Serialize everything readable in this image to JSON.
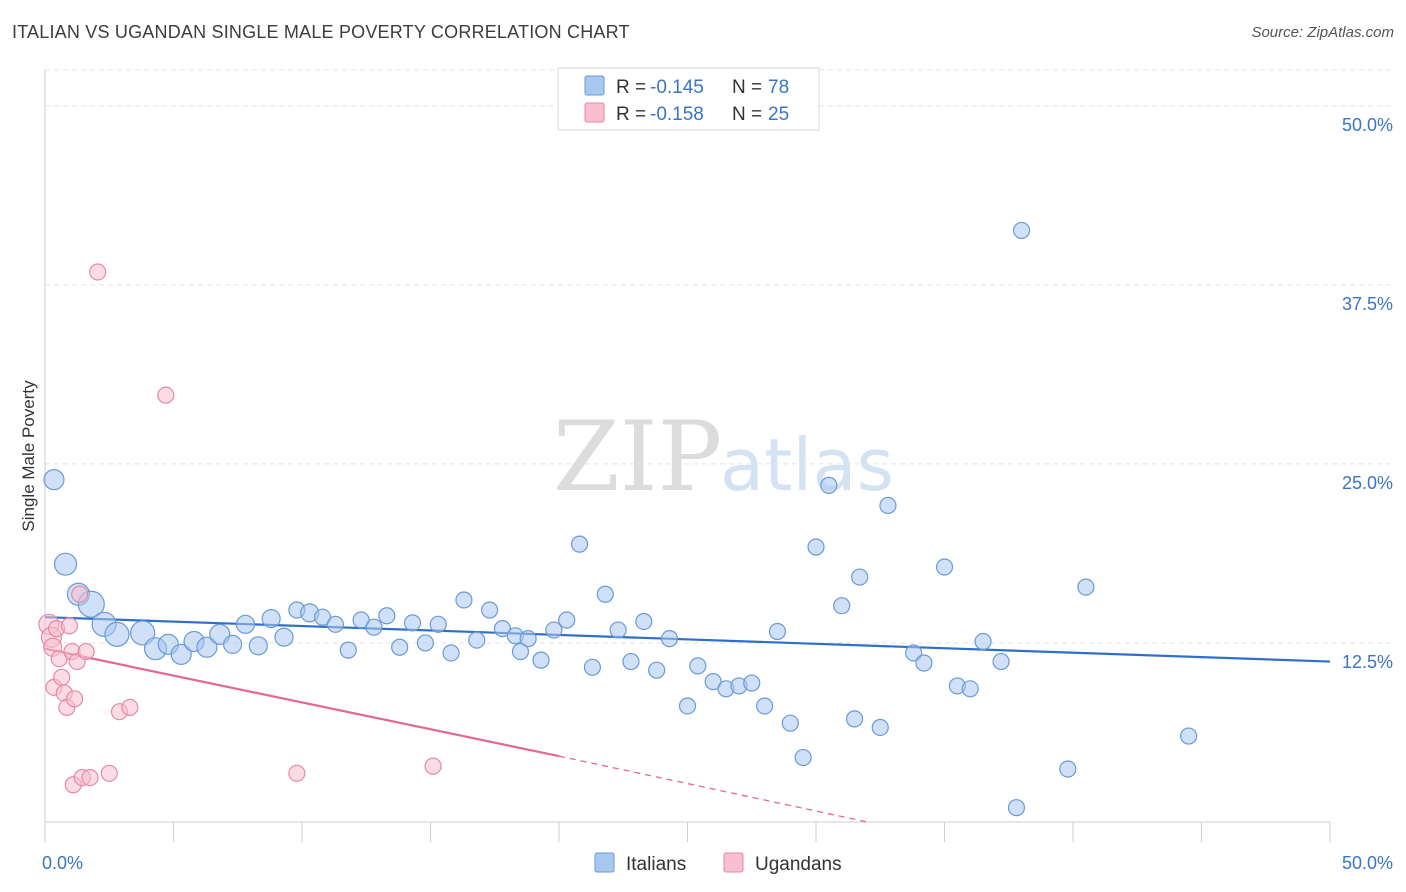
{
  "title": "ITALIAN VS UGANDAN SINGLE MALE POVERTY CORRELATION CHART",
  "source": "Source: ZipAtlas.com",
  "watermark": {
    "zip": "ZIP",
    "atlas": "atlas"
  },
  "colors": {
    "italians_fill": "#a9c8f0",
    "italians_stroke": "#6a9ad6",
    "italians_line": "#2f6fc9",
    "ugandans_fill": "#f7bfd0",
    "ugandans_stroke": "#e58aa6",
    "ugandans_line": "#e4688f",
    "axis_text": "#3a74c4",
    "grid": "#e3e3e3"
  },
  "legend": {
    "rows": [
      {
        "r_label": "R =",
        "r_value": "-0.145",
        "n_label": "N =",
        "n_value": "78"
      },
      {
        "r_label": "R =",
        "r_value": "-0.158",
        "n_label": "N =",
        "n_value": "25"
      }
    ]
  },
  "bottom_legend": {
    "italians": "Italians",
    "ugandans": "Ugandans"
  },
  "chart_data": {
    "type": "scatter",
    "xlabel": "",
    "ylabel": "Single Male Poverty",
    "xlim": [
      0,
      50
    ],
    "ylim": [
      0,
      52.5
    ],
    "x_tick_labels": [
      "0.0%",
      "50.0%"
    ],
    "y_ticks": [
      12.5,
      25.0,
      37.5,
      50.0
    ],
    "y_tick_labels": [
      "12.5%",
      "25.0%",
      "37.5%",
      "50.0%"
    ],
    "grid": "horizontal dashed",
    "series": [
      {
        "name": "Italians",
        "points": [
          [
            0.35,
            23.9,
            10
          ],
          [
            0.8,
            18.0,
            11
          ],
          [
            1.3,
            15.9,
            11
          ],
          [
            1.8,
            15.2,
            13
          ],
          [
            2.3,
            13.8,
            12
          ],
          [
            2.8,
            13.1,
            12
          ],
          [
            3.8,
            13.2,
            12
          ],
          [
            4.3,
            12.1,
            11
          ],
          [
            4.8,
            12.4,
            10
          ],
          [
            5.3,
            11.7,
            10
          ],
          [
            5.8,
            12.6,
            10
          ],
          [
            6.3,
            12.2,
            10
          ],
          [
            6.8,
            13.1,
            10
          ],
          [
            7.3,
            12.4,
            9
          ],
          [
            7.8,
            13.8,
            9
          ],
          [
            8.3,
            12.3,
            9
          ],
          [
            8.8,
            14.2,
            9
          ],
          [
            9.3,
            12.9,
            9
          ],
          [
            9.8,
            14.8,
            8
          ],
          [
            10.3,
            14.6,
            9
          ],
          [
            10.8,
            14.3,
            8
          ],
          [
            11.3,
            13.8,
            8
          ],
          [
            11.8,
            12.0,
            8
          ],
          [
            12.3,
            14.1,
            8
          ],
          [
            12.8,
            13.6,
            8
          ],
          [
            13.3,
            14.4,
            8
          ],
          [
            13.8,
            12.2,
            8
          ],
          [
            14.3,
            13.9,
            8
          ],
          [
            14.8,
            12.5,
            8
          ],
          [
            15.3,
            13.8,
            8
          ],
          [
            15.8,
            11.8,
            8
          ],
          [
            16.3,
            15.5,
            8
          ],
          [
            16.8,
            12.7,
            8
          ],
          [
            17.3,
            14.8,
            8
          ],
          [
            17.8,
            13.5,
            8
          ],
          [
            18.3,
            13.0,
            8
          ],
          [
            18.8,
            12.8,
            8
          ],
          [
            19.3,
            11.3,
            8
          ],
          [
            19.8,
            13.4,
            8
          ],
          [
            20.3,
            14.1,
            8
          ],
          [
            20.8,
            19.4,
            8
          ],
          [
            21.3,
            10.8,
            8
          ],
          [
            21.8,
            15.9,
            8
          ],
          [
            22.3,
            13.4,
            8
          ],
          [
            22.8,
            11.2,
            8
          ],
          [
            23.3,
            14.0,
            8
          ],
          [
            23.8,
            10.6,
            8
          ],
          [
            24.3,
            12.8,
            8
          ],
          [
            25.0,
            8.1,
            8
          ],
          [
            25.4,
            10.9,
            8
          ],
          [
            26.0,
            9.8,
            8
          ],
          [
            26.5,
            9.3,
            8
          ],
          [
            27.0,
            9.5,
            8
          ],
          [
            27.5,
            9.7,
            8
          ],
          [
            28.0,
            8.1,
            8
          ],
          [
            28.5,
            13.3,
            8
          ],
          [
            29.0,
            6.9,
            8
          ],
          [
            29.5,
            4.5,
            8
          ],
          [
            30.0,
            19.2,
            8
          ],
          [
            30.5,
            23.5,
            8
          ],
          [
            31.0,
            15.1,
            8
          ],
          [
            31.5,
            7.2,
            8
          ],
          [
            31.7,
            17.1,
            8
          ],
          [
            32.5,
            6.6,
            8
          ],
          [
            32.8,
            22.1,
            8
          ],
          [
            33.8,
            11.8,
            8
          ],
          [
            34.2,
            11.1,
            8
          ],
          [
            35.0,
            17.8,
            8
          ],
          [
            35.5,
            9.5,
            8
          ],
          [
            36.0,
            9.3,
            8
          ],
          [
            36.5,
            12.6,
            8
          ],
          [
            37.2,
            11.2,
            8
          ],
          [
            37.8,
            1.0,
            8
          ],
          [
            38.0,
            41.3,
            8
          ],
          [
            39.8,
            3.7,
            8
          ],
          [
            40.5,
            16.4,
            8
          ],
          [
            44.5,
            6.0,
            8
          ],
          [
            18.5,
            11.9,
            8
          ]
        ],
        "trend": {
          "x": [
            0,
            50
          ],
          "y": [
            14.3,
            11.2
          ]
        }
      },
      {
        "name": "Ugandans",
        "points": [
          [
            0.15,
            13.8,
            10
          ],
          [
            0.25,
            12.9,
            10
          ],
          [
            0.3,
            12.2,
            9
          ],
          [
            0.35,
            9.4,
            8
          ],
          [
            0.45,
            13.5,
            8
          ],
          [
            0.55,
            11.4,
            8
          ],
          [
            0.65,
            10.1,
            8
          ],
          [
            0.75,
            9.0,
            8
          ],
          [
            0.85,
            8.0,
            8
          ],
          [
            0.95,
            13.7,
            8
          ],
          [
            1.05,
            11.9,
            8
          ],
          [
            1.1,
            2.6,
            8
          ],
          [
            1.15,
            8.6,
            8
          ],
          [
            1.25,
            11.2,
            8
          ],
          [
            1.35,
            15.9,
            8
          ],
          [
            1.45,
            3.1,
            8
          ],
          [
            1.6,
            11.9,
            8
          ],
          [
            1.75,
            3.1,
            8
          ],
          [
            2.05,
            38.4,
            8
          ],
          [
            2.5,
            3.4,
            8
          ],
          [
            2.9,
            7.7,
            8
          ],
          [
            3.3,
            8.0,
            8
          ],
          [
            4.7,
            29.8,
            8
          ],
          [
            9.8,
            3.4,
            8
          ],
          [
            15.1,
            3.9,
            8
          ]
        ],
        "trend": {
          "x": [
            0,
            20
          ],
          "y": [
            12.1,
            4.6
          ]
        },
        "trend_dashed": {
          "x": [
            20,
            32
          ],
          "y": [
            4.6,
            0
          ]
        }
      }
    ]
  }
}
